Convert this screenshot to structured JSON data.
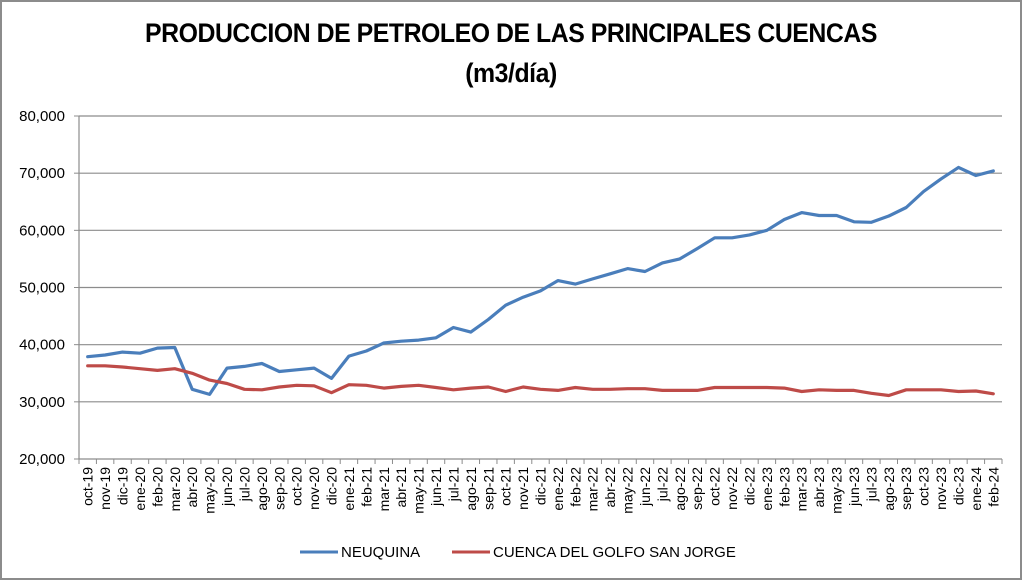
{
  "chart_data": {
    "type": "line",
    "title": "PRODUCCION DE PETROLEO DE LAS PRINCIPALES CUENCAS",
    "subtitle": "(m3/día)",
    "xlabel": "",
    "ylabel": "",
    "ylim": [
      20000,
      80000
    ],
    "yticks": [
      20000,
      30000,
      40000,
      50000,
      60000,
      70000,
      80000
    ],
    "ytick_labels": [
      "20,000",
      "30,000",
      "40,000",
      "50,000",
      "60,000",
      "70,000",
      "80,000"
    ],
    "grid": true,
    "legend_position": "bottom",
    "categories": [
      "oct-19",
      "nov-19",
      "dic-19",
      "ene-20",
      "feb-20",
      "mar-20",
      "abr-20",
      "may-20",
      "jun-20",
      "jul-20",
      "ago-20",
      "sep-20",
      "oct-20",
      "nov-20",
      "dic-20",
      "ene-21",
      "feb-21",
      "mar-21",
      "abr-21",
      "may-21",
      "jun-21",
      "jul-21",
      "ago-21",
      "sep-21",
      "oct-21",
      "nov-21",
      "dic-21",
      "ene-22",
      "feb-22",
      "mar-22",
      "abr-22",
      "may-22",
      "jun-22",
      "jul-22",
      "ago-22",
      "sep-22",
      "oct-22",
      "nov-22",
      "dic-22",
      "ene-23",
      "feb-23",
      "mar-23",
      "abr-23",
      "may-23",
      "jun-23",
      "jul-23",
      "ago-23",
      "sep-23",
      "oct-23",
      "nov-23",
      "dic-23",
      "ene-24",
      "feb-24"
    ],
    "series": [
      {
        "name": "NEUQUINA",
        "color": "#4a7ebb",
        "values": [
          37900,
          38200,
          38700,
          38500,
          39400,
          39500,
          32200,
          31300,
          35900,
          36200,
          36700,
          35300,
          35600,
          35900,
          34100,
          38000,
          38900,
          40300,
          40600,
          40800,
          41200,
          43000,
          42200,
          44400,
          46900,
          48300,
          49400,
          51200,
          50600,
          51500,
          52400,
          53300,
          52800,
          54300,
          55000,
          56800,
          58700,
          58700,
          59200,
          60000,
          61900,
          63100,
          62600,
          62600,
          61500,
          61400,
          62500,
          64000,
          66800,
          69000,
          71000,
          69600,
          70400
        ]
      },
      {
        "name": "CUENCA DEL GOLFO SAN JORGE",
        "color": "#be4b48",
        "values": [
          36300,
          36300,
          36100,
          35800,
          35500,
          35800,
          35000,
          33800,
          33200,
          32200,
          32100,
          32600,
          32900,
          32800,
          31600,
          33000,
          32900,
          32400,
          32700,
          32900,
          32500,
          32100,
          32400,
          32600,
          31800,
          32600,
          32200,
          32000,
          32500,
          32200,
          32200,
          32300,
          32300,
          32000,
          32000,
          32000,
          32500,
          32500,
          32500,
          32500,
          32400,
          31800,
          32100,
          32000,
          32000,
          31500,
          31100,
          32100,
          32100,
          32100,
          31800,
          31900,
          31400
        ]
      }
    ]
  }
}
